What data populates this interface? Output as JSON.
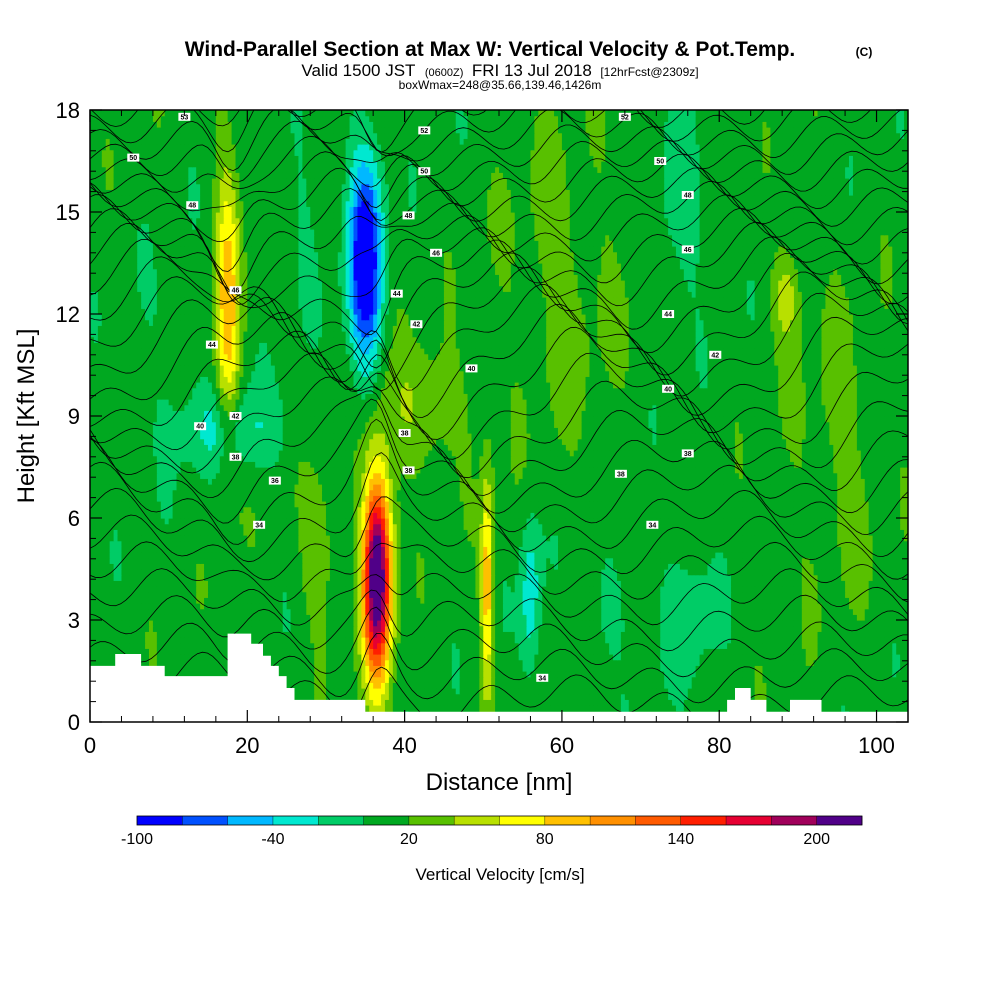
{
  "chart_data": {
    "type": "heatmap",
    "title": "Wind-Parallel Section at Max W: Vertical Velocity & Pot.Temp.",
    "title_suffix": "(C)",
    "subtitle": {
      "valid": "Valid 1500 JST",
      "zulu": "(0600Z)",
      "date": "FRI 13 Jul 2018",
      "forecast": "[12hrFcst@2309z]"
    },
    "box_info": "boxWmax=248@35.66,139.46,1426m",
    "xlabel": "Distance [nm]",
    "ylabel": "Height [Kft MSL]",
    "xlim": [
      0,
      104
    ],
    "ylim": [
      0,
      18
    ],
    "xticks": [
      "0",
      "20",
      "40",
      "60",
      "80",
      "100"
    ],
    "yticks": [
      "0",
      "3",
      "6",
      "9",
      "12",
      "15",
      "18"
    ],
    "colorbar": {
      "label": "Vertical Velocity [cm/s]",
      "ticks": [
        "-100",
        "-40",
        "20",
        "80",
        "140",
        "200"
      ],
      "bins": [
        -100,
        -80,
        -60,
        -40,
        -20,
        0,
        20,
        40,
        60,
        80,
        100,
        120,
        140,
        160,
        180,
        200,
        220
      ],
      "colors": [
        "#0000ff",
        "#0050ff",
        "#00b8ff",
        "#00e8d0",
        "#00cc66",
        "#00a820",
        "#58c000",
        "#b8e000",
        "#ffff00",
        "#ffc000",
        "#ff9000",
        "#ff5a00",
        "#ff1e00",
        "#e60032",
        "#a0005a",
        "#500088"
      ]
    },
    "background_w": 10,
    "features": [
      {
        "x": 36.5,
        "y": 4.3,
        "sx": 1.25,
        "sy": 2.1,
        "w": 230
      },
      {
        "x": 35.0,
        "y": 13.5,
        "sx": 1.5,
        "sy": 2.2,
        "w": -120
      },
      {
        "x": 17.5,
        "y": 12.2,
        "sx": 1.1,
        "sy": 3.0,
        "w": 80
      },
      {
        "x": 50.5,
        "y": 4.0,
        "sx": 0.55,
        "sy": 2.2,
        "w": 85
      },
      {
        "x": 42.0,
        "y": 9.2,
        "sx": 4.0,
        "sy": 1.3,
        "w": 30
      },
      {
        "x": 18.0,
        "y": 8.6,
        "sx": 4.5,
        "sy": 0.9,
        "w": -35
      },
      {
        "x": 56.0,
        "y": 3.7,
        "sx": 0.9,
        "sy": 1.6,
        "w": -45
      },
      {
        "x": 75.0,
        "y": 15.2,
        "sx": 2.0,
        "sy": 1.8,
        "w": -25
      },
      {
        "x": 76.0,
        "y": 3.2,
        "sx": 2.5,
        "sy": 1.4,
        "w": -22
      },
      {
        "x": 66.0,
        "y": 3.3,
        "sx": 1.5,
        "sy": 1.0,
        "w": -20
      },
      {
        "x": 88.5,
        "y": 12.5,
        "sx": 1.2,
        "sy": 0.9,
        "w": 40
      },
      {
        "x": 10.0,
        "y": 11.0,
        "sx": 3.0,
        "sy": 2.0,
        "w": -8
      },
      {
        "x": 27.0,
        "y": 15.0,
        "sx": 1.5,
        "sy": 2.5,
        "w": -10
      },
      {
        "x": 29.0,
        "y": 5.0,
        "sx": 1.5,
        "sy": 1.5,
        "w": 28
      },
      {
        "x": 60.0,
        "y": 13.0,
        "sx": 5.0,
        "sy": 3.0,
        "w": 18
      },
      {
        "x": 95.0,
        "y": 8.0,
        "sx": 4.0,
        "sy": 3.0,
        "w": 16
      }
    ],
    "terrain": [
      [
        0,
        1.65
      ],
      [
        3.2,
        1.65
      ],
      [
        3.2,
        2.0
      ],
      [
        6.5,
        2.0
      ],
      [
        6.5,
        1.65
      ],
      [
        9.5,
        1.65
      ],
      [
        9.5,
        1.35
      ],
      [
        17.5,
        1.35
      ],
      [
        17.5,
        2.6
      ],
      [
        20.5,
        2.6
      ],
      [
        20.5,
        2.3
      ],
      [
        22,
        2.3
      ],
      [
        22,
        1.95
      ],
      [
        23,
        1.95
      ],
      [
        23,
        1.65
      ],
      [
        24,
        1.65
      ],
      [
        24,
        1.35
      ],
      [
        25,
        1.35
      ],
      [
        25,
        1.0
      ],
      [
        26,
        1.0
      ],
      [
        26,
        0.65
      ],
      [
        35,
        0.65
      ],
      [
        35,
        0.3
      ],
      [
        81,
        0.3
      ],
      [
        81,
        0.65
      ],
      [
        82,
        0.65
      ],
      [
        82,
        1.0
      ],
      [
        84,
        1.0
      ],
      [
        84,
        0.65
      ],
      [
        86,
        0.65
      ],
      [
        86,
        0.3
      ],
      [
        89,
        0.3
      ],
      [
        89,
        0.65
      ],
      [
        93,
        0.65
      ],
      [
        93,
        0.3
      ],
      [
        104,
        0.3
      ]
    ],
    "isentropes": {
      "levels": [
        24,
        25,
        26,
        27,
        28,
        29,
        30,
        31,
        32,
        33,
        34,
        35,
        36,
        37,
        38,
        39,
        40,
        41,
        42,
        43,
        44,
        45,
        46,
        47,
        48,
        49,
        50,
        51,
        52,
        53
      ],
      "labels": [
        {
          "x": 57.5,
          "y": 1.3,
          "text": "34"
        },
        {
          "x": 21.5,
          "y": 5.8,
          "text": "34"
        },
        {
          "x": 71.5,
          "y": 5.8,
          "text": "34"
        },
        {
          "x": 23.5,
          "y": 7.1,
          "text": "36"
        },
        {
          "x": 40.5,
          "y": 7.4,
          "text": "38"
        },
        {
          "x": 67.5,
          "y": 7.3,
          "text": "38"
        },
        {
          "x": 76.0,
          "y": 7.9,
          "text": "38"
        },
        {
          "x": 18.5,
          "y": 7.8,
          "text": "38"
        },
        {
          "x": 40.0,
          "y": 8.5,
          "text": "38"
        },
        {
          "x": 14.0,
          "y": 8.7,
          "text": "40"
        },
        {
          "x": 18.5,
          "y": 9.0,
          "text": "42"
        },
        {
          "x": 73.5,
          "y": 9.8,
          "text": "40"
        },
        {
          "x": 48.5,
          "y": 10.4,
          "text": "40"
        },
        {
          "x": 15.5,
          "y": 11.1,
          "text": "44"
        },
        {
          "x": 79.5,
          "y": 10.8,
          "text": "42"
        },
        {
          "x": 41.5,
          "y": 11.7,
          "text": "42"
        },
        {
          "x": 18.5,
          "y": 12.7,
          "text": "46"
        },
        {
          "x": 39.0,
          "y": 12.6,
          "text": "44"
        },
        {
          "x": 73.5,
          "y": 12.0,
          "text": "44"
        },
        {
          "x": 44.0,
          "y": 13.8,
          "text": "46"
        },
        {
          "x": 76.0,
          "y": 13.9,
          "text": "46"
        },
        {
          "x": 13.0,
          "y": 15.2,
          "text": "48"
        },
        {
          "x": 40.5,
          "y": 14.9,
          "text": "48"
        },
        {
          "x": 76.0,
          "y": 15.5,
          "text": "48"
        },
        {
          "x": 5.5,
          "y": 16.6,
          "text": "50"
        },
        {
          "x": 42.5,
          "y": 16.2,
          "text": "50"
        },
        {
          "x": 72.5,
          "y": 16.5,
          "text": "50"
        },
        {
          "x": 12.0,
          "y": 17.8,
          "text": "53"
        },
        {
          "x": 42.5,
          "y": 17.4,
          "text": "52"
        },
        {
          "x": 68.0,
          "y": 17.8,
          "text": "52"
        }
      ]
    }
  }
}
